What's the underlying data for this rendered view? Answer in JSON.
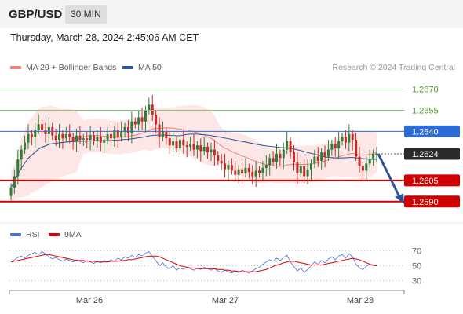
{
  "header": {
    "pair": "GBP/USD",
    "timeframe": "30 MIN"
  },
  "datetime": "Thursday, March 28, 2024 2:45:06 AM CET",
  "legend": {
    "ma20": "MA 20 + Bollinger Bands",
    "ma50": "MA 50",
    "credit": "Research © 2024 Trading Central"
  },
  "rsi_legend": {
    "rsi": "RSI",
    "ma9": "9MA"
  },
  "colors": {
    "up": "#2e7d32",
    "down": "#c62828",
    "ma20": "#f08080",
    "ma50": "#2e5597",
    "resistance": "#8dc56e",
    "pivot": "#2b6bd6",
    "support": "#d00000",
    "current": "#2b2b2b",
    "rsi": "#4a72d6",
    "rsi_ma": "#dd0000"
  },
  "chart_data": {
    "type": "candlestick",
    "ylim": [
      1.2577,
      1.2681
    ],
    "levels": [
      {
        "label": "1.2670",
        "value": 1.267,
        "kind": "resistance"
      },
      {
        "label": "1.2655",
        "value": 1.2655,
        "kind": "resistance"
      },
      {
        "label": "1.2640",
        "value": 1.264,
        "kind": "pivot"
      },
      {
        "label": "1.2624",
        "value": 1.2624,
        "kind": "current"
      },
      {
        "label": "1.2605",
        "value": 1.2605,
        "kind": "support"
      },
      {
        "label": "1.2590",
        "value": 1.259,
        "kind": "support"
      }
    ],
    "x_ticks": [
      "Mar 26",
      "Mar 27",
      "Mar 28"
    ],
    "closes": [
      1.26,
      1.2608,
      1.262,
      1.2627,
      1.2632,
      1.2638,
      1.2636,
      1.2641,
      1.2645,
      1.2641,
      1.2638,
      1.2643,
      1.2637,
      1.2634,
      1.2638,
      1.2635,
      1.2638,
      1.2636,
      1.2633,
      1.2637,
      1.2634,
      1.2635,
      1.2634,
      1.2637,
      1.2633,
      1.2636,
      1.2632,
      1.2634,
      1.2638,
      1.2635,
      1.2641,
      1.2636,
      1.264,
      1.2643,
      1.2639,
      1.2647,
      1.2645,
      1.265,
      1.2647,
      1.2655,
      1.2659,
      1.2652,
      1.2645,
      1.2636,
      1.264,
      1.2635,
      1.263,
      1.2633,
      1.2628,
      1.2634,
      1.263,
      1.2629,
      1.2631,
      1.2627,
      1.263,
      1.2626,
      1.2629,
      1.2625,
      1.2627,
      1.2623,
      1.2619,
      1.2617,
      1.2613,
      1.2616,
      1.2612,
      1.2609,
      1.2613,
      1.261,
      1.2614,
      1.2611,
      1.2608,
      1.2612,
      1.261,
      1.2614,
      1.2616,
      1.2621,
      1.2618,
      1.2624,
      1.2621,
      1.2627,
      1.2633,
      1.2625,
      1.2618,
      1.261,
      1.2615,
      1.2608,
      1.2613,
      1.2617,
      1.2622,
      1.2619,
      1.2625,
      1.2622,
      1.2627,
      1.2631,
      1.2628,
      1.2633,
      1.2636,
      1.2632,
      1.2638,
      1.2634,
      1.2622,
      1.2615,
      1.2612,
      1.2617,
      1.262,
      1.2624,
      1.2624
    ],
    "projection": {
      "from": 1.2624,
      "to": 1.259
    },
    "rsi": {
      "ylim": [
        22,
        78
      ],
      "ticks": [
        70,
        50,
        30
      ],
      "values": [
        55,
        58,
        61,
        63,
        60,
        64,
        66,
        68,
        65,
        69,
        66,
        62,
        59,
        61,
        58,
        56,
        59,
        57,
        55,
        58,
        56,
        54,
        57,
        55,
        53,
        56,
        54,
        57,
        55,
        58,
        56,
        60,
        58,
        62,
        60,
        64,
        61,
        65,
        63,
        67,
        69,
        62,
        57,
        50,
        54,
        48,
        46,
        50,
        44,
        47,
        45,
        48,
        46,
        44,
        47,
        45,
        48,
        46,
        44,
        46,
        43,
        41,
        44,
        42,
        40,
        43,
        41,
        44,
        42,
        40,
        43,
        46,
        48,
        52,
        55,
        58,
        56,
        60,
        57,
        61,
        64,
        55,
        49,
        43,
        47,
        41,
        45,
        50,
        55,
        52,
        57,
        54,
        59,
        62,
        58,
        63,
        65,
        60,
        66,
        62,
        52,
        47,
        45,
        49,
        52,
        50,
        50
      ],
      "ma9": [
        55,
        56,
        57,
        58,
        59,
        60,
        61,
        62,
        63,
        64,
        65,
        65,
        64,
        63,
        62,
        61,
        60,
        59,
        58,
        57,
        57,
        57,
        56,
        56,
        56,
        55,
        55,
        55,
        55,
        56,
        56,
        56,
        57,
        57,
        58,
        58,
        59,
        60,
        61,
        62,
        63,
        63,
        63,
        62,
        60,
        58,
        56,
        54,
        52,
        50,
        49,
        48,
        47,
        47,
        46,
        46,
        46,
        46,
        46,
        46,
        45,
        45,
        44,
        44,
        43,
        43,
        42,
        42,
        42,
        42,
        42,
        42,
        43,
        44,
        45,
        47,
        49,
        51,
        52,
        54,
        55,
        56,
        56,
        55,
        54,
        53,
        52,
        51,
        51,
        51,
        51,
        52,
        53,
        54,
        55,
        56,
        57,
        58,
        59,
        60,
        59,
        58,
        56,
        54,
        52,
        51,
        50
      ]
    }
  }
}
